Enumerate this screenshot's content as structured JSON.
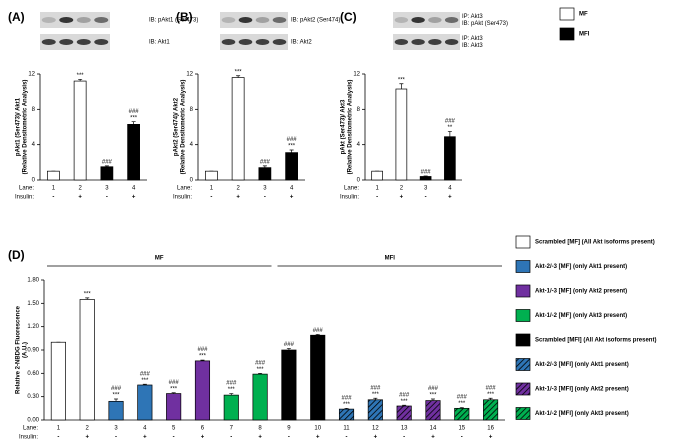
{
  "chart_data": [
    {
      "type": "bar",
      "title": "(A)",
      "blots": [
        [
          "IB: pAkt1 (Ser473)"
        ],
        [
          "IB: Akt1"
        ]
      ],
      "ylabel": [
        "pAkt1 (Ser473)/ Akt1",
        "(Relative Densitometric Analysis)"
      ],
      "lane_label": "Lane:",
      "insulin_label": "Insulin:",
      "categories": [
        "1",
        "2",
        "3",
        "4"
      ],
      "insulin": [
        "-",
        "+",
        "-",
        "+"
      ],
      "values": [
        1,
        11.2,
        1.5,
        6.3
      ],
      "errors": [
        0,
        0.2,
        0.1,
        0.3
      ],
      "colors": [
        "#ffffff",
        "#ffffff",
        "#000000",
        "#000000"
      ],
      "annotations": [
        null,
        [
          "***"
        ],
        [
          "###"
        ],
        [
          "###",
          "***"
        ]
      ],
      "ylim": [
        0,
        12
      ],
      "yticks": [
        0,
        4,
        8,
        12
      ]
    },
    {
      "type": "bar",
      "title": "(B)",
      "blots": [
        [
          "IB: pAkt2 (Ser474)"
        ],
        [
          "IB: Akt2"
        ]
      ],
      "ylabel": [
        "pAkt2 (Ser474)/ Akt2",
        "(Relative Densitometric Analysis)"
      ],
      "lane_label": "Lane:",
      "insulin_label": "Insulin:",
      "categories": [
        "1",
        "2",
        "3",
        "4"
      ],
      "insulin": [
        "-",
        "+",
        "-",
        "+"
      ],
      "values": [
        1,
        11.6,
        1.4,
        3.1
      ],
      "errors": [
        0,
        0.2,
        0.2,
        0.3
      ],
      "colors": [
        "#ffffff",
        "#ffffff",
        "#000000",
        "#000000"
      ],
      "annotations": [
        null,
        [
          "***"
        ],
        [
          "###"
        ],
        [
          "###",
          "***"
        ]
      ],
      "ylim": [
        0,
        12
      ],
      "yticks": [
        0,
        4,
        8,
        12
      ]
    },
    {
      "type": "bar",
      "title": "(C)",
      "blots": [
        [
          "IP: Akt3",
          "IB: pAkt (Ser473)"
        ],
        [
          "IP: Akt3",
          "IB: Akt3"
        ]
      ],
      "ylabel": [
        "pAkt (Ser473)/ Akt3",
        "(Relative Densitometric Analysis)"
      ],
      "lane_label": "Lane:",
      "insulin_label": "Insulin:",
      "categories": [
        "1",
        "2",
        "3",
        "4"
      ],
      "insulin": [
        "-",
        "+",
        "-",
        "+"
      ],
      "values": [
        1,
        10.3,
        0.4,
        4.9
      ],
      "errors": [
        0,
        0.6,
        0.05,
        0.6
      ],
      "colors": [
        "#ffffff",
        "#ffffff",
        "#000000",
        "#000000"
      ],
      "annotations": [
        null,
        [
          "***"
        ],
        [
          "###"
        ],
        [
          "###",
          "**"
        ]
      ],
      "ylim": [
        0,
        12
      ],
      "yticks": [
        0,
        4,
        8,
        12
      ],
      "legend": [
        {
          "name": "MF",
          "color": "#ffffff",
          "hatch": false
        },
        {
          "name": "MFI",
          "color": "#000000",
          "hatch": false
        }
      ]
    },
    {
      "type": "bar",
      "title": "(D)",
      "ylabel": [
        "Relative 2-NBDG Fluorescence",
        "(A.U.)"
      ],
      "lane_label": "Lane:",
      "insulin_label": "Insulin:",
      "group_labels": [
        "MF",
        "MFI"
      ],
      "categories": [
        "1",
        "2",
        "3",
        "4",
        "5",
        "6",
        "7",
        "8",
        "9",
        "10",
        "11",
        "12",
        "13",
        "14",
        "15",
        "16"
      ],
      "insulin": [
        "-",
        "+",
        "-",
        "+",
        "-",
        "+",
        "-",
        "+",
        "-",
        "+",
        "-",
        "+",
        "-",
        "+",
        "-",
        "+"
      ],
      "values": [
        1.0,
        1.55,
        0.24,
        0.45,
        0.34,
        0.76,
        0.32,
        0.59,
        0.9,
        1.09,
        0.14,
        0.26,
        0.18,
        0.25,
        0.15,
        0.26
      ],
      "errors": [
        0,
        0.02,
        0.03,
        0.01,
        0.01,
        0.01,
        0.02,
        0.01,
        0.02,
        0.01,
        0.01,
        0.02,
        0.01,
        0.02,
        0.01,
        0.02
      ],
      "colors": [
        "#ffffff",
        "#ffffff",
        "#2e75b6",
        "#2e75b6",
        "#7030a0",
        "#7030a0",
        "#00b050",
        "#00b050",
        "#000000",
        "#000000",
        "#2e75b6",
        "#2e75b6",
        "#7030a0",
        "#7030a0",
        "#00b050",
        "#00b050"
      ],
      "hatch": [
        false,
        false,
        false,
        false,
        false,
        false,
        false,
        false,
        false,
        false,
        true,
        true,
        true,
        true,
        true,
        true
      ],
      "annotations": [
        null,
        [
          "***"
        ],
        [
          "###",
          "***"
        ],
        [
          "###",
          "***"
        ],
        [
          "###",
          "***"
        ],
        [
          "###",
          "***"
        ],
        [
          "###",
          "***"
        ],
        [
          "###",
          "***"
        ],
        [
          "###"
        ],
        [
          "###"
        ],
        [
          "###",
          "***"
        ],
        [
          "###",
          "***"
        ],
        [
          "###",
          "***"
        ],
        [
          "###",
          "***"
        ],
        [
          "###",
          "***"
        ],
        [
          "###",
          "***"
        ]
      ],
      "ylim": [
        0,
        1.8
      ],
      "yticks": [
        {
          "value": 0,
          "label": "0.00"
        },
        {
          "value": 0.3,
          "label": "0.30"
        },
        {
          "value": 0.6,
          "label": "0.60"
        },
        {
          "value": 0.9,
          "label": "0.90"
        },
        {
          "value": 1.2,
          "label": "1.20"
        },
        {
          "value": 1.5,
          "label": "1.50"
        },
        {
          "value": 1.8,
          "label": "1.80"
        }
      ],
      "legend": [
        {
          "name": "Scrambled [MF] (All Akt isoforms present)",
          "color": "#ffffff",
          "hatch": false
        },
        {
          "name": "Akt-2/-3 [MF] (only Akt1 present)",
          "color": "#2e75b6",
          "hatch": false
        },
        {
          "name": "Akt-1/-3 [MF] (only Akt2 present)",
          "color": "#7030a0",
          "hatch": false
        },
        {
          "name": "Akt-1/-2 [MF] (only Akt3 present)",
          "color": "#00b050",
          "hatch": false
        },
        {
          "name": "Scrambled [MFI] (All Akt isoforms present)",
          "color": "#000000",
          "hatch": false
        },
        {
          "name": "Akt-2/-3 [MFI] (only Akt1 present)",
          "color": "#2e75b6",
          "hatch": true
        },
        {
          "name": "Akt-1/-3 [MFI] (only Akt2 present)",
          "color": "#7030a0",
          "hatch": true
        },
        {
          "name": "Akt-1/-2 [MFI] (only Akt3 present)",
          "color": "#00b050",
          "hatch": true
        }
      ]
    }
  ]
}
